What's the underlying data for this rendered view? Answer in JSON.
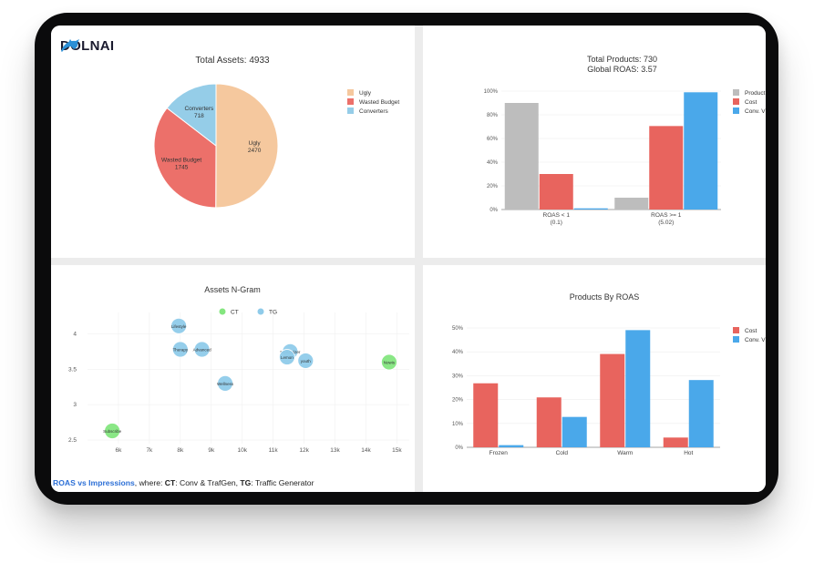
{
  "brand": {
    "name": "DOLNAI",
    "logo_icon": "dolphin-icon",
    "accent": "#2b8fd6"
  },
  "footer": {
    "link": "ROAS vs Impressions",
    "text1": ", where: ",
    "ct_key": "CT",
    "ct_desc": ": Conv & TrafGen, ",
    "tg_key": "TG",
    "tg_desc": ": Traffic Generator"
  },
  "chart_data": [
    {
      "type": "pie",
      "title": "Total Assets: 4933",
      "labels": [
        "Ugly",
        "Wasted Budget",
        "Converters"
      ],
      "values": [
        2470,
        1745,
        718
      ],
      "colors": [
        "#f5c89e",
        "#ec706a",
        "#95cde8"
      ],
      "legend_position": "top-right"
    },
    {
      "type": "bar",
      "title_lines": [
        "Total Products: 730",
        "Global ROAS: 3.57"
      ],
      "categories": [
        "ROAS < 1",
        "ROAS >= 1"
      ],
      "category_sublabels": [
        "(0.1)",
        "(5.02)"
      ],
      "series": [
        {
          "name": "Product",
          "values": [
            90,
            10
          ],
          "color": "#bdbdbd"
        },
        {
          "name": "Cost",
          "values": [
            30,
            70.5
          ],
          "color": "#e8645e"
        },
        {
          "name": "Conv. V",
          "values": [
            1,
            99
          ],
          "color": "#4aa8ea"
        }
      ],
      "yticks": [
        "0%",
        "20%",
        "40%",
        "60%",
        "80%",
        "100%"
      ],
      "ylim": [
        0,
        100
      ],
      "legend_position": "top-right"
    },
    {
      "type": "scatter",
      "title": "Assets N-Gram",
      "series": [
        {
          "name": "CT",
          "color": "#84e67f",
          "points": [
            {
              "x": 5800,
              "y": 2.63,
              "label": "Subscribe"
            },
            {
              "x": 14750,
              "y": 3.6,
              "label": "Nowis"
            }
          ]
        },
        {
          "name": "TG",
          "color": "#8fcbea",
          "points": [
            {
              "x": 7950,
              "y": 4.11,
              "label": "Lifestyle"
            },
            {
              "x": 8000,
              "y": 3.78,
              "label": "Therapy"
            },
            {
              "x": 8700,
              "y": 3.78,
              "label": "Advanced"
            },
            {
              "x": 9450,
              "y": 3.3,
              "label": "Wellness"
            },
            {
              "x": 11550,
              "y": 3.75,
              "label": "Moisturizer"
            },
            {
              "x": 11450,
              "y": 3.67,
              "label": "Lemon"
            },
            {
              "x": 12050,
              "y": 3.62,
              "label": "youth"
            }
          ]
        }
      ],
      "xticks": [
        "6k",
        "7k",
        "8k",
        "9k",
        "10k",
        "11k",
        "12k",
        "13k",
        "14k",
        "15k"
      ],
      "yticks": [
        "2.5",
        "3",
        "3.5",
        "4"
      ],
      "xlim": [
        5000,
        15400
      ],
      "ylim": [
        2.45,
        4.3
      ],
      "legend_position": "top-center"
    },
    {
      "type": "bar",
      "title": "Products By ROAS",
      "categories": [
        "Frozen",
        "Cold",
        "Warm",
        "Hot"
      ],
      "series": [
        {
          "name": "Cost",
          "values": [
            29.5,
            23,
            43,
            4.5
          ],
          "color": "#e8645e"
        },
        {
          "name": "Conv. V",
          "values": [
            1,
            14,
            54,
            31
          ],
          "color": "#4aa8ea"
        }
      ],
      "yticks": [
        "0%",
        "10%",
        "20%",
        "30%",
        "40%",
        "50%"
      ],
      "ylim": [
        0,
        55
      ],
      "legend_position": "top-right"
    }
  ]
}
